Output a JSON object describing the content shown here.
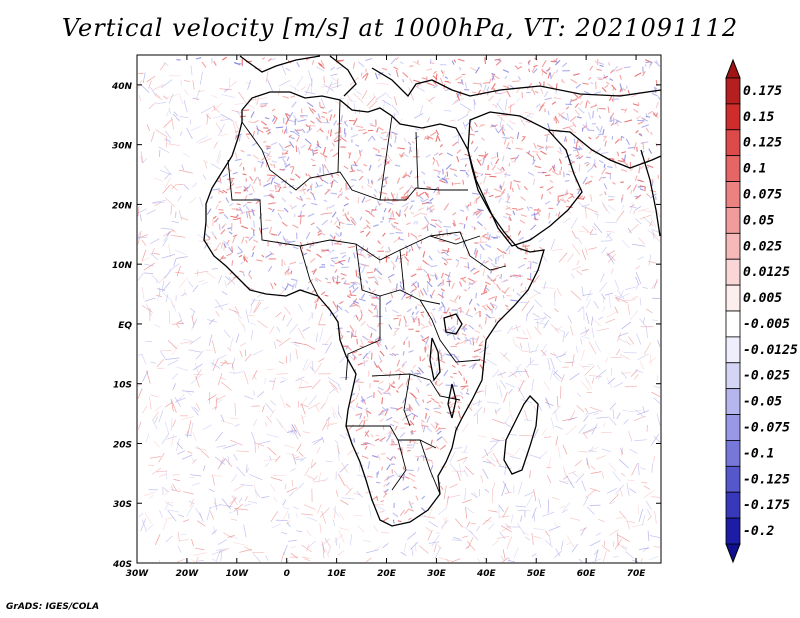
{
  "title": "Vertical velocity [m/s] at 1000hPa, VT: 2021091112",
  "credit": "GrADS: IGES/COLA",
  "map": {
    "lat_labels": [
      "40N",
      "30N",
      "20N",
      "10N",
      "EQ",
      "10S",
      "20S",
      "30S",
      "40S"
    ],
    "lon_labels": [
      "30W",
      "20W",
      "10W",
      "0",
      "10E",
      "20E",
      "30E",
      "40E",
      "50E",
      "60E",
      "70E"
    ],
    "extent": {
      "lon_min": -30,
      "lon_max": 75,
      "lat_min": -40,
      "lat_max": 45
    },
    "field": "Vertical velocity",
    "level": "1000hPa",
    "valid_time": "2021091112"
  },
  "colorbar": {
    "levels": [
      "0.175",
      "0.15",
      "0.125",
      "0.1",
      "0.075",
      "0.05",
      "0.025",
      "0.0125",
      "0.005",
      "-0.005",
      "-0.0125",
      "-0.025",
      "-0.05",
      "-0.075",
      "-0.1",
      "-0.125",
      "-0.175",
      "-0.2"
    ],
    "colors": [
      "#b51f1f",
      "#cf2c2c",
      "#dd4a4a",
      "#e66565",
      "#ec8181",
      "#f19c9c",
      "#f6b8b8",
      "#fad6d6",
      "#fdeeee",
      "#ffffff",
      "#eeeefd",
      "#d4d4f7",
      "#b6b6ef",
      "#9898e6",
      "#7777d9",
      "#5757cc",
      "#3838bb",
      "#1c1ca6"
    ],
    "top_arrow_color": "#a01414",
    "bottom_arrow_color": "#10108e"
  }
}
